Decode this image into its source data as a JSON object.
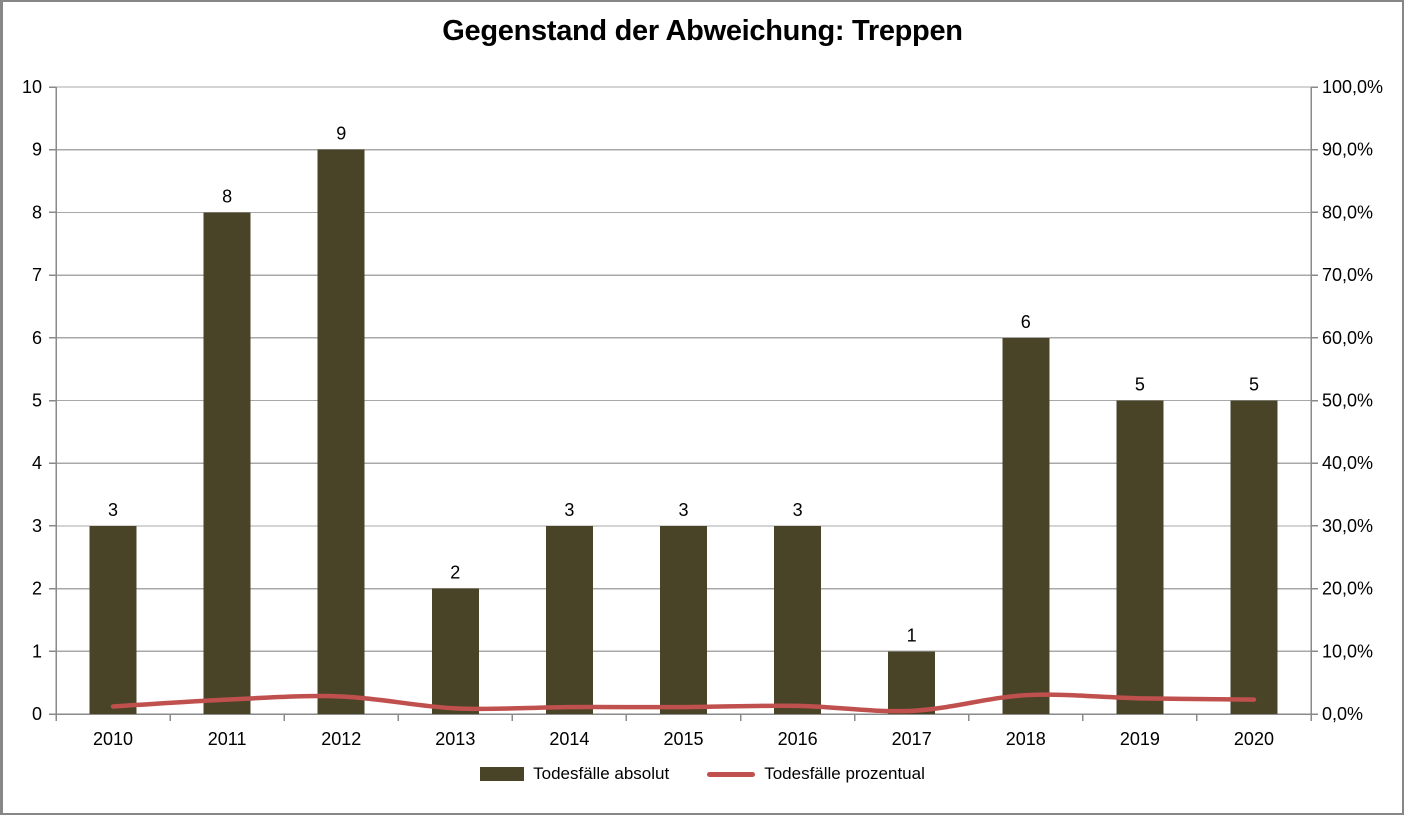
{
  "chart_data": {
    "type": "bar+line",
    "title": "Gegenstand der Abweichung: Treppen",
    "categories": [
      "2010",
      "2011",
      "2012",
      "2013",
      "2014",
      "2015",
      "2016",
      "2017",
      "2018",
      "2019",
      "2020"
    ],
    "series": [
      {
        "name": "Todesfälle absolut",
        "type": "bar",
        "axis": "left",
        "values": [
          3,
          8,
          9,
          2,
          3,
          3,
          3,
          1,
          6,
          5,
          5
        ]
      },
      {
        "name": "Todesfälle prozentual",
        "type": "line",
        "axis": "right",
        "values": [
          1.2,
          2.3,
          2.8,
          0.9,
          1.1,
          1.1,
          1.3,
          0.5,
          3.0,
          2.5,
          2.3
        ]
      }
    ],
    "left_axis": {
      "min": 0,
      "max": 10,
      "step": 1,
      "tick_labels": [
        "0",
        "1",
        "2",
        "3",
        "4",
        "5",
        "6",
        "7",
        "8",
        "9",
        "10"
      ]
    },
    "right_axis": {
      "min": 0,
      "max": 100,
      "step": 10,
      "tick_labels": [
        "0,0%",
        "10,0%",
        "20,0%",
        "30,0%",
        "40,0%",
        "50,0%",
        "60,0%",
        "70,0%",
        "80,0%",
        "90,0%",
        "100,0%"
      ]
    },
    "grid": true,
    "legend_position": "bottom",
    "colors": {
      "bar": "#494428",
      "line": "#C0504D",
      "grid": "#A8A8A8",
      "axis": "#8A8A8A",
      "text": "#000000"
    }
  }
}
